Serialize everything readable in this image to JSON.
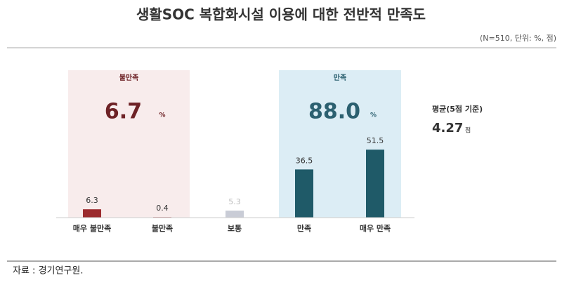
{
  "chart_data": {
    "type": "bar",
    "title": "생활SOC 복합화시설 이용에 대한 전반적 만족도",
    "note": "(N=510, 단위: %, 점)",
    "categories": [
      "매우 불만족",
      "불만족",
      "보통",
      "만족",
      "매우 만족"
    ],
    "values": [
      6.3,
      0.4,
      5.3,
      36.5,
      51.5
    ],
    "colors": [
      "#9b2b2e",
      "#9b2b2e",
      "#c9ccd6",
      "#1f5a68",
      "#1f5a68"
    ],
    "groups": [
      {
        "label": "불만족",
        "total": {
          "value": 6.7,
          "label": "6.7"
        },
        "unit": "%",
        "color": "#f8ecec",
        "text_color": "#6e2226"
      },
      {
        "label": "만족",
        "total": {
          "value": 88,
          "label": "88.0"
        },
        "unit": "%",
        "color": "#dcedf5",
        "text_color": "#2c6070"
      }
    ],
    "average": {
      "label": "평균(5점 기준)",
      "value": 4.27,
      "unit": "점"
    },
    "source": "자료 : 경기연구원."
  }
}
